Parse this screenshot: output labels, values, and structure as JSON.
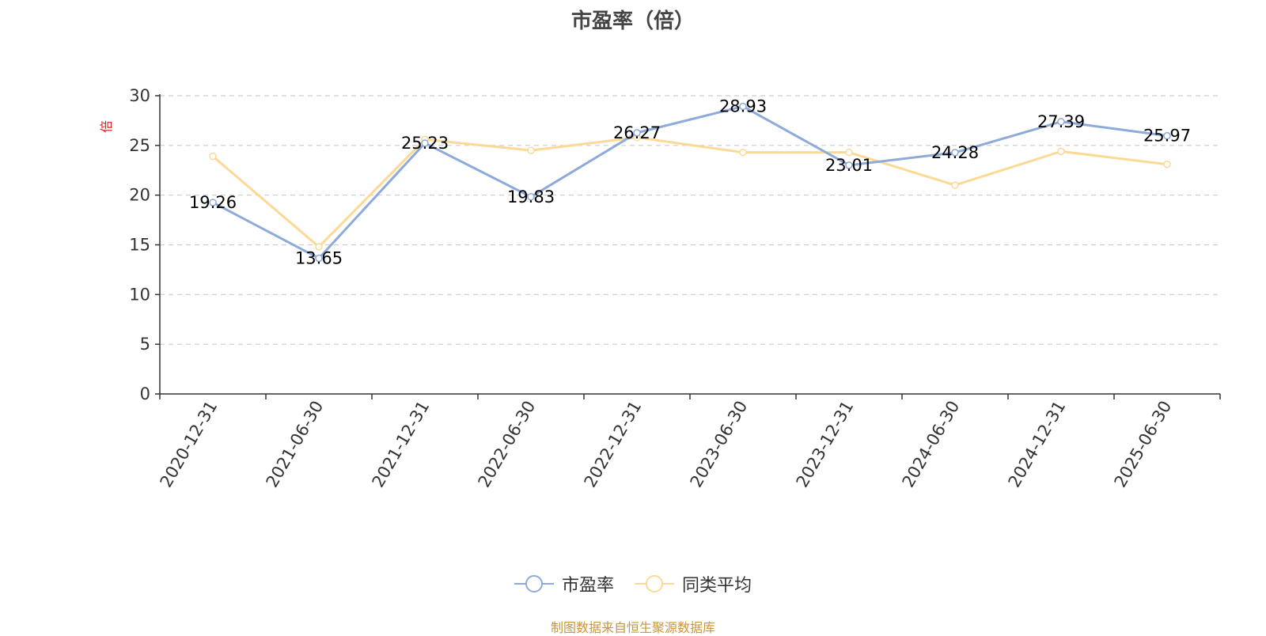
{
  "title": "市盈率（倍）",
  "y_unit": "倍",
  "source_note": "制图数据来自恒生聚源数据库",
  "colors": {
    "pe": "#8eaadb",
    "peer": "#fcd995",
    "grid": "#cccccc",
    "axis": "#333333",
    "unit": "#e02020",
    "source": "#c8963c"
  },
  "chart_data": {
    "type": "line",
    "title": "市盈率（倍）",
    "ylabel": "倍",
    "xlabel": "",
    "ylim": [
      0,
      30
    ],
    "yticks": [
      0,
      5,
      10,
      15,
      20,
      25,
      30
    ],
    "grid": true,
    "legend_position": "bottom-center",
    "categories": [
      "2020-12-31",
      "2021-06-30",
      "2021-12-31",
      "2022-06-30",
      "2022-12-31",
      "2023-06-30",
      "2023-12-31",
      "2024-06-30",
      "2024-12-31",
      "2025-06-30"
    ],
    "series": [
      {
        "name": "市盈率",
        "values": [
          19.26,
          13.65,
          25.23,
          19.83,
          26.27,
          28.93,
          23.01,
          24.28,
          27.39,
          25.97
        ],
        "labels": [
          "19.26",
          "13.65",
          "25.23",
          "19.83",
          "26.27",
          "28.93",
          "23.01",
          "24.28",
          "27.39",
          "25.97"
        ]
      },
      {
        "name": "同类平均",
        "values": [
          23.9,
          14.8,
          25.6,
          24.5,
          25.8,
          24.3,
          24.3,
          21.0,
          24.4,
          23.1
        ]
      }
    ]
  }
}
